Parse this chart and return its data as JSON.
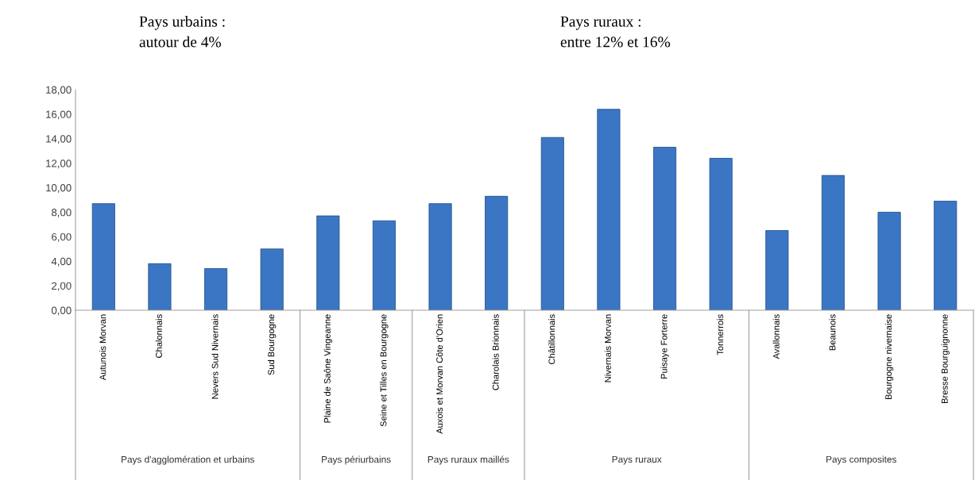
{
  "chart_data": {
    "type": "bar",
    "categories": [
      "Autunois Morvan",
      "Chalonnais",
      "Nevers Sud Nivernais",
      "Sud Bourgogne",
      "Plaine de Saône Vingeanne",
      "Seine et Tilles en Bourgogne",
      "Auxois et Morvan Côte d'Orien",
      "Charolais Brionnais",
      "Châtillonnais",
      "Nivernais Morvan",
      "Puisaye Forterre",
      "Tonnerrois",
      "Avallonnais",
      "Beaunois",
      "Bourgogne nivernaise",
      "Bresse Bourguignonne"
    ],
    "values": [
      8.7,
      3.8,
      3.4,
      5.0,
      7.7,
      7.3,
      8.7,
      9.3,
      14.1,
      16.4,
      13.3,
      12.4,
      6.5,
      11.0,
      8.0,
      8.9
    ],
    "color": "#3a76c4",
    "ylim": [
      0,
      18
    ],
    "yticks": [
      {
        "value": 0,
        "label": "0,00"
      },
      {
        "value": 2,
        "label": "2,00"
      },
      {
        "value": 4,
        "label": "4,00"
      },
      {
        "value": 6,
        "label": "6,00"
      },
      {
        "value": 8,
        "label": "8,00"
      },
      {
        "value": 10,
        "label": "10,00"
      },
      {
        "value": 12,
        "label": "12,00"
      },
      {
        "value": 14,
        "label": "14,00"
      },
      {
        "value": 16,
        "label": "16,00"
      },
      {
        "value": 18,
        "label": "18,00"
      }
    ],
    "grid": false,
    "legend": false,
    "annotations": [
      "Pays urbains :\nautour de 4%",
      "Pays ruraux :\nentre 12% et 16%",
      "Pays d'agglomération et urbains",
      "Pays périurbains",
      "Pays ruraux maillés",
      "Pays ruraux",
      "Pays composites"
    ]
  }
}
